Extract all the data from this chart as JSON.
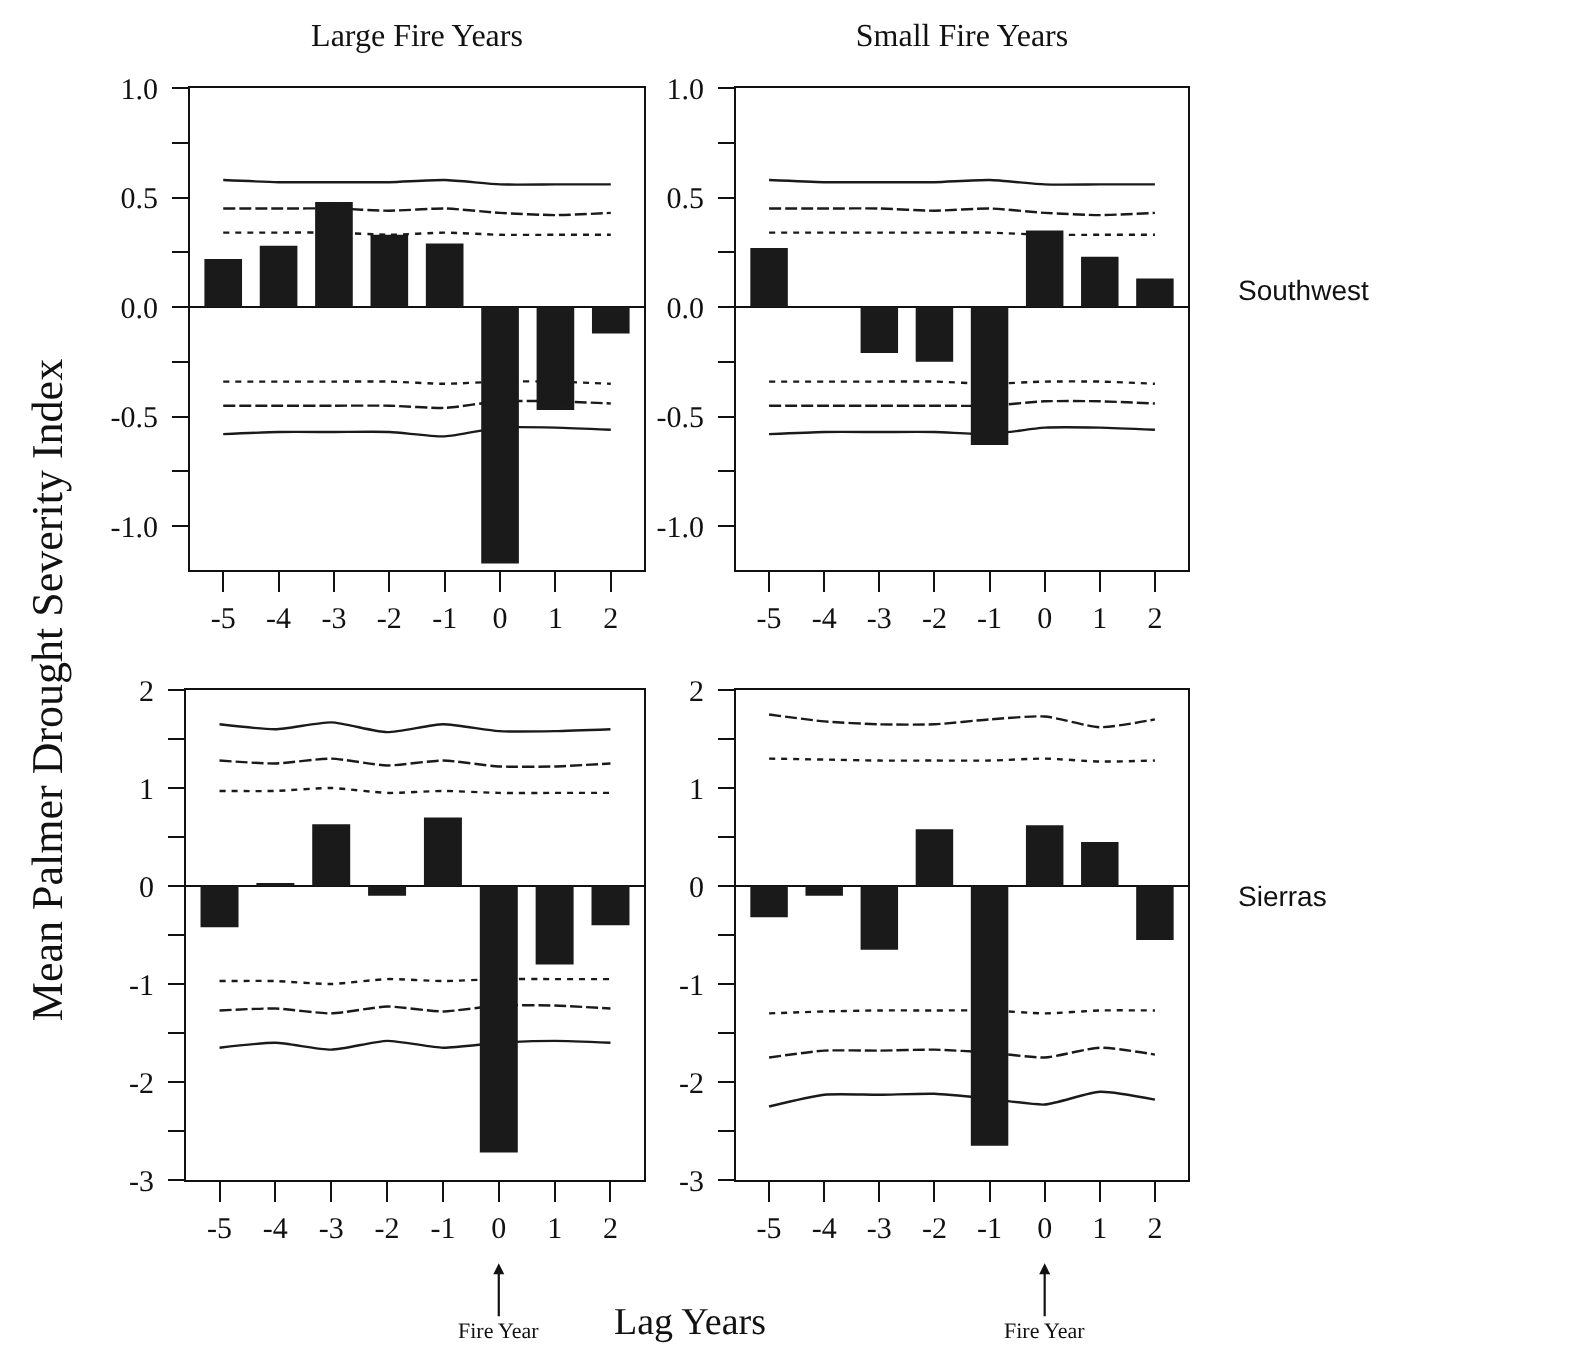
{
  "chart_data": [
    {
      "type": "bar",
      "title": "Large Fire Years",
      "ylabel": "Mean Palmer Drought Severity Index",
      "categories": [
        "-5",
        "-4",
        "-3",
        "-2",
        "-1",
        "0",
        "1",
        "2"
      ],
      "ylim": [
        -1.2,
        1.0
      ],
      "yticks": [
        {
          "value": -1.0,
          "label": "-1.0"
        },
        {
          "value": -0.75,
          "label": null
        },
        {
          "value": -0.5,
          "label": "-0.5"
        },
        {
          "value": -0.25,
          "label": null
        },
        {
          "value": 0,
          "label": "0.0"
        },
        {
          "value": 0.25,
          "label": null
        },
        {
          "value": 0.5,
          "label": "0.5"
        },
        {
          "value": 0.75,
          "label": null
        },
        {
          "value": 1.0,
          "label": "1.0"
        }
      ],
      "series": [
        {
          "type": "bar",
          "color": "#1a1a1a",
          "values": [
            0.22,
            0.28,
            0.48,
            0.33,
            0.29,
            -1.17,
            -0.47,
            -0.12
          ]
        },
        {
          "type": "line",
          "color": "#1a1a1a",
          "line_style": "solid",
          "values": [
            0.58,
            0.57,
            0.57,
            0.57,
            0.58,
            0.56,
            0.56,
            0.56
          ]
        },
        {
          "type": "line",
          "color": "#1a1a1a",
          "line_style": "dashed",
          "values": [
            0.45,
            0.45,
            0.45,
            0.44,
            0.45,
            0.43,
            0.42,
            0.43
          ]
        },
        {
          "type": "line",
          "color": "#1a1a1a",
          "line_style": "dotted",
          "values": [
            0.34,
            0.34,
            0.34,
            0.33,
            0.34,
            0.33,
            0.33,
            0.33
          ]
        },
        {
          "type": "line",
          "color": "#1a1a1a",
          "line_style": "dotted",
          "values": [
            -0.34,
            -0.34,
            -0.34,
            -0.34,
            -0.35,
            -0.34,
            -0.34,
            -0.35
          ]
        },
        {
          "type": "line",
          "color": "#1a1a1a",
          "line_style": "dashed",
          "values": [
            -0.45,
            -0.45,
            -0.45,
            -0.45,
            -0.46,
            -0.43,
            -0.43,
            -0.44
          ]
        },
        {
          "type": "line",
          "color": "#1a1a1a",
          "line_style": "solid",
          "values": [
            -0.58,
            -0.57,
            -0.57,
            -0.57,
            -0.59,
            -0.55,
            -0.55,
            -0.56
          ]
        }
      ]
    },
    {
      "type": "bar",
      "title": "Small Fire Years",
      "annotations": [
        "Southwest"
      ],
      "categories": [
        "-5",
        "-4",
        "-3",
        "-2",
        "-1",
        "0",
        "1",
        "2"
      ],
      "ylim": [
        -1.2,
        1.0
      ],
      "yticks": [
        {
          "value": -1.0,
          "label": "-1.0"
        },
        {
          "value": -0.75,
          "label": null
        },
        {
          "value": -0.5,
          "label": "-0.5"
        },
        {
          "value": -0.25,
          "label": null
        },
        {
          "value": 0,
          "label": "0.0"
        },
        {
          "value": 0.25,
          "label": null
        },
        {
          "value": 0.5,
          "label": "0.5"
        },
        {
          "value": 0.75,
          "label": null
        },
        {
          "value": 1.0,
          "label": "1.0"
        }
      ],
      "series": [
        {
          "type": "bar",
          "color": "#1a1a1a",
          "values": [
            0.27,
            null,
            -0.21,
            -0.25,
            -0.63,
            0.35,
            0.23,
            0.13
          ]
        },
        {
          "type": "line",
          "color": "#1a1a1a",
          "line_style": "solid",
          "values": [
            0.58,
            0.57,
            0.57,
            0.57,
            0.58,
            0.56,
            0.56,
            0.56
          ]
        },
        {
          "type": "line",
          "color": "#1a1a1a",
          "line_style": "dashed",
          "values": [
            0.45,
            0.45,
            0.45,
            0.44,
            0.45,
            0.43,
            0.42,
            0.43
          ]
        },
        {
          "type": "line",
          "color": "#1a1a1a",
          "line_style": "dotted",
          "values": [
            0.34,
            0.34,
            0.34,
            0.34,
            0.34,
            0.33,
            0.33,
            0.33
          ]
        },
        {
          "type": "line",
          "color": "#1a1a1a",
          "line_style": "dotted",
          "values": [
            -0.34,
            -0.34,
            -0.34,
            -0.34,
            -0.35,
            -0.34,
            -0.34,
            -0.35
          ]
        },
        {
          "type": "line",
          "color": "#1a1a1a",
          "line_style": "dashed",
          "values": [
            -0.45,
            -0.45,
            -0.45,
            -0.45,
            -0.45,
            -0.43,
            -0.43,
            -0.44
          ]
        },
        {
          "type": "line",
          "color": "#1a1a1a",
          "line_style": "solid",
          "values": [
            -0.58,
            -0.57,
            -0.57,
            -0.57,
            -0.58,
            -0.55,
            -0.55,
            -0.56
          ]
        }
      ]
    },
    {
      "type": "bar",
      "xlabel": "Lag Years",
      "annotations": [
        {
          "text": "Fire Year",
          "x": "0"
        }
      ],
      "categories": [
        "-5",
        "-4",
        "-3",
        "-2",
        "-1",
        "0",
        "1",
        "2"
      ],
      "ylim": [
        -3,
        2
      ],
      "yticks": [
        -3,
        {
          "value": -2.5,
          "label": null
        },
        -2,
        {
          "value": -1.5,
          "label": null
        },
        -1,
        {
          "value": -0.5,
          "label": null
        },
        0,
        {
          "value": 0.5,
          "label": null
        },
        1,
        {
          "value": 1.5,
          "label": null
        },
        2
      ],
      "series": [
        {
          "type": "bar",
          "color": "#1a1a1a",
          "values": [
            -0.42,
            0.03,
            0.63,
            -0.1,
            0.7,
            -2.72,
            -0.8,
            -0.4
          ]
        },
        {
          "type": "line",
          "color": "#1a1a1a",
          "line_style": "solid",
          "values": [
            1.65,
            1.6,
            1.67,
            1.57,
            1.65,
            1.58,
            1.58,
            1.6
          ]
        },
        {
          "type": "line",
          "color": "#1a1a1a",
          "line_style": "dashed",
          "values": [
            1.28,
            1.25,
            1.3,
            1.23,
            1.28,
            1.22,
            1.22,
            1.25
          ]
        },
        {
          "type": "line",
          "color": "#1a1a1a",
          "line_style": "dotted",
          "values": [
            0.97,
            0.97,
            1.0,
            0.95,
            0.97,
            0.95,
            0.95,
            0.95
          ]
        },
        {
          "type": "line",
          "color": "#1a1a1a",
          "line_style": "dotted",
          "values": [
            -0.97,
            -0.97,
            -1.0,
            -0.95,
            -0.97,
            -0.95,
            -0.95,
            -0.95
          ]
        },
        {
          "type": "line",
          "color": "#1a1a1a",
          "line_style": "dashed",
          "values": [
            -1.27,
            -1.25,
            -1.3,
            -1.23,
            -1.28,
            -1.22,
            -1.22,
            -1.25
          ]
        },
        {
          "type": "line",
          "color": "#1a1a1a",
          "line_style": "solid",
          "values": [
            -1.65,
            -1.6,
            -1.67,
            -1.58,
            -1.65,
            -1.6,
            -1.58,
            -1.6
          ]
        }
      ]
    },
    {
      "type": "bar",
      "annotations": [
        "Sierras",
        {
          "text": "Fire Year",
          "x": "0"
        }
      ],
      "categories": [
        "-5",
        "-4",
        "-3",
        "-2",
        "-1",
        "0",
        "1",
        "2"
      ],
      "ylim": [
        -3,
        2
      ],
      "yticks": [
        -3,
        {
          "value": -2.5,
          "label": null
        },
        -2,
        {
          "value": -1.5,
          "label": null
        },
        -1,
        {
          "value": -0.5,
          "label": null
        },
        0,
        {
          "value": 0.5,
          "label": null
        },
        1,
        {
          "value": 1.5,
          "label": null
        },
        2
      ],
      "series": [
        {
          "type": "bar",
          "color": "#1a1a1a",
          "values": [
            -0.32,
            -0.1,
            -0.65,
            0.58,
            -2.65,
            0.62,
            0.45,
            -0.55
          ]
        },
        {
          "type": "line",
          "color": "#1a1a1a",
          "line_style": "dashed",
          "values": [
            1.75,
            1.68,
            1.65,
            1.65,
            1.7,
            1.73,
            1.62,
            1.7
          ]
        },
        {
          "type": "line",
          "color": "#1a1a1a",
          "line_style": "dotted",
          "values": [
            1.3,
            1.29,
            1.28,
            1.28,
            1.28,
            1.3,
            1.27,
            1.28
          ]
        },
        {
          "type": "line",
          "color": "#1a1a1a",
          "line_style": "dotted",
          "values": [
            -1.3,
            -1.28,
            -1.27,
            -1.27,
            -1.27,
            -1.3,
            -1.27,
            -1.27
          ]
        },
        {
          "type": "line",
          "color": "#1a1a1a",
          "line_style": "dashed",
          "values": [
            -1.75,
            -1.68,
            -1.68,
            -1.67,
            -1.7,
            -1.75,
            -1.65,
            -1.72
          ]
        },
        {
          "type": "line",
          "color": "#1a1a1a",
          "line_style": "solid",
          "values": [
            -2.25,
            -2.13,
            -2.13,
            -2.12,
            -2.17,
            -2.23,
            -2.1,
            -2.18
          ]
        }
      ]
    }
  ]
}
